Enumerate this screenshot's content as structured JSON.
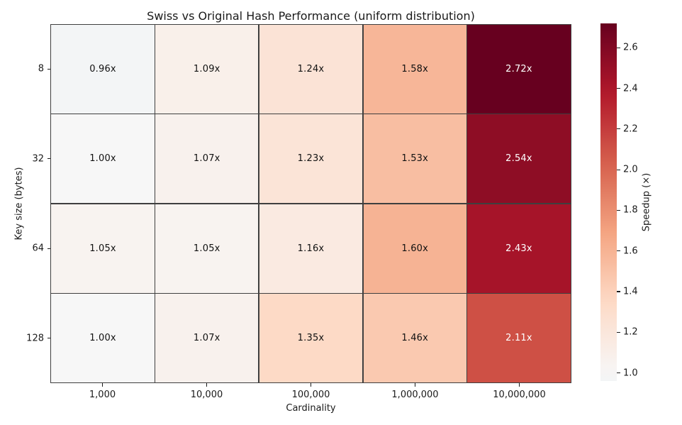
{
  "title": "Swiss vs Original Hash Performance (uniform distribution)",
  "chart_data": {
    "type": "heatmap",
    "title": "Swiss vs Original Hash Performance (uniform distribution)",
    "xlabel": "Cardinality",
    "ylabel": "Key size (bytes)",
    "x_categories": [
      "1,000",
      "10,000",
      "100,000",
      "1,000,000",
      "10,000,000"
    ],
    "y_categories": [
      "8",
      "32",
      "64",
      "128"
    ],
    "values": [
      [
        0.96,
        1.09,
        1.24,
        1.58,
        2.72
      ],
      [
        1.0,
        1.07,
        1.23,
        1.53,
        2.54
      ],
      [
        1.05,
        1.05,
        1.16,
        1.6,
        2.43
      ],
      [
        1.0,
        1.07,
        1.35,
        1.46,
        2.11
      ]
    ],
    "cell_labels": [
      [
        "0.96x",
        "1.09x",
        "1.24x",
        "1.58x",
        "2.72x"
      ],
      [
        "1.00x",
        "1.07x",
        "1.23x",
        "1.53x",
        "2.54x"
      ],
      [
        "1.05x",
        "1.05x",
        "1.16x",
        "1.60x",
        "2.43x"
      ],
      [
        "1.00x",
        "1.07x",
        "1.35x",
        "1.46x",
        "2.11x"
      ]
    ],
    "colorbar": {
      "label": "Speedup (×)",
      "tick_labels": [
        "1.0",
        "1.2",
        "1.4",
        "1.6",
        "1.8",
        "2.0",
        "2.2",
        "2.4",
        "2.6"
      ],
      "ticks": [
        1.0,
        1.2,
        1.4,
        1.6,
        1.8,
        2.0,
        2.2,
        2.4,
        2.6
      ],
      "vmin": 0.96,
      "vcenter": 1.0,
      "vmax": 2.72,
      "colormap": "RdBu_r"
    },
    "grid": true,
    "legend_position": "right-colorbar",
    "colors": {
      "gridline": "#3f3f3f",
      "background": "#ffffff",
      "max_cell": "#67001f",
      "min_cell": "#f3f5f6"
    }
  }
}
